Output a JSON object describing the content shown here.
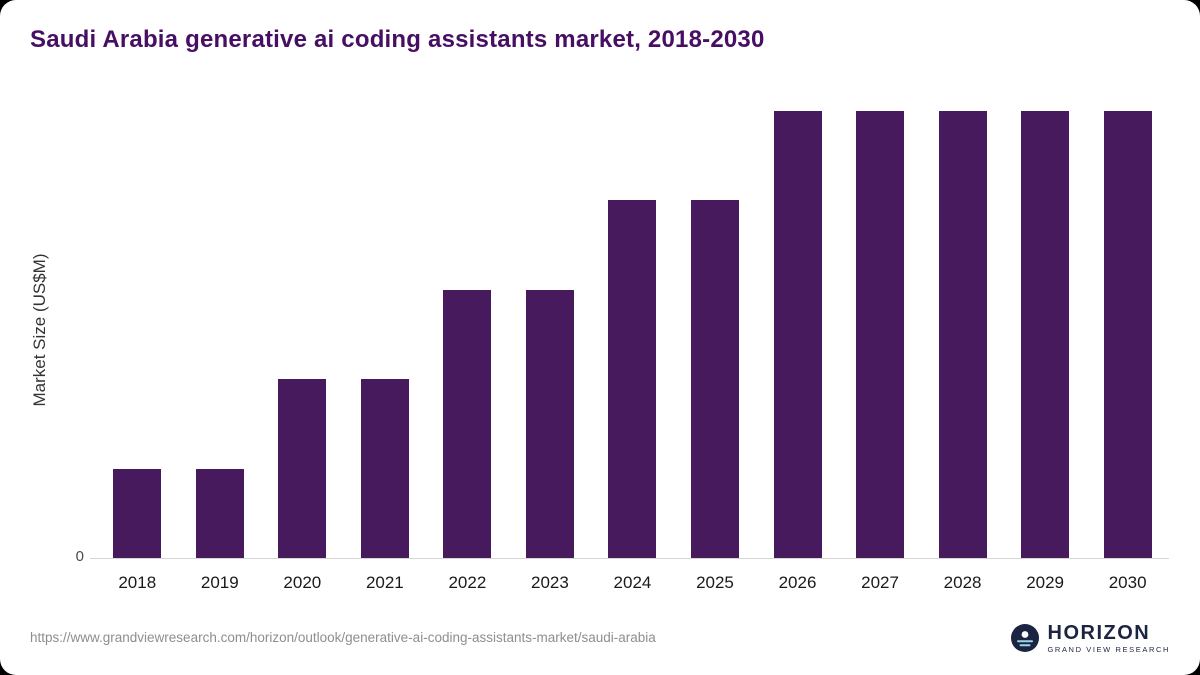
{
  "chart_data": {
    "type": "bar",
    "title": "Saudi Arabia generative ai coding assistants market, 2018-2030",
    "ylabel": "Market Size (US$M)",
    "xlabel": "",
    "categories": [
      "2018",
      "2019",
      "2020",
      "2021",
      "2022",
      "2023",
      "2024",
      "2025",
      "2026",
      "2027",
      "2028",
      "2029",
      "2030"
    ],
    "values": [
      20,
      20,
      40,
      40,
      60,
      60,
      80,
      80,
      100,
      100,
      100,
      100,
      100
    ],
    "ylim": [
      0,
      100
    ],
    "y_ticks": [
      "0"
    ],
    "grid": false,
    "legend": false,
    "bar_color": "#461a5c",
    "title_color": "#470f63",
    "axis_line_color": "#d6d6d6"
  },
  "footer": {
    "source_url": "https://www.grandviewresearch.com/horizon/outlook/generative-ai-coding-assistants-market/saudi-arabia",
    "logo": {
      "title": "HORIZON",
      "subtitle": "GRAND VIEW RESEARCH"
    }
  }
}
